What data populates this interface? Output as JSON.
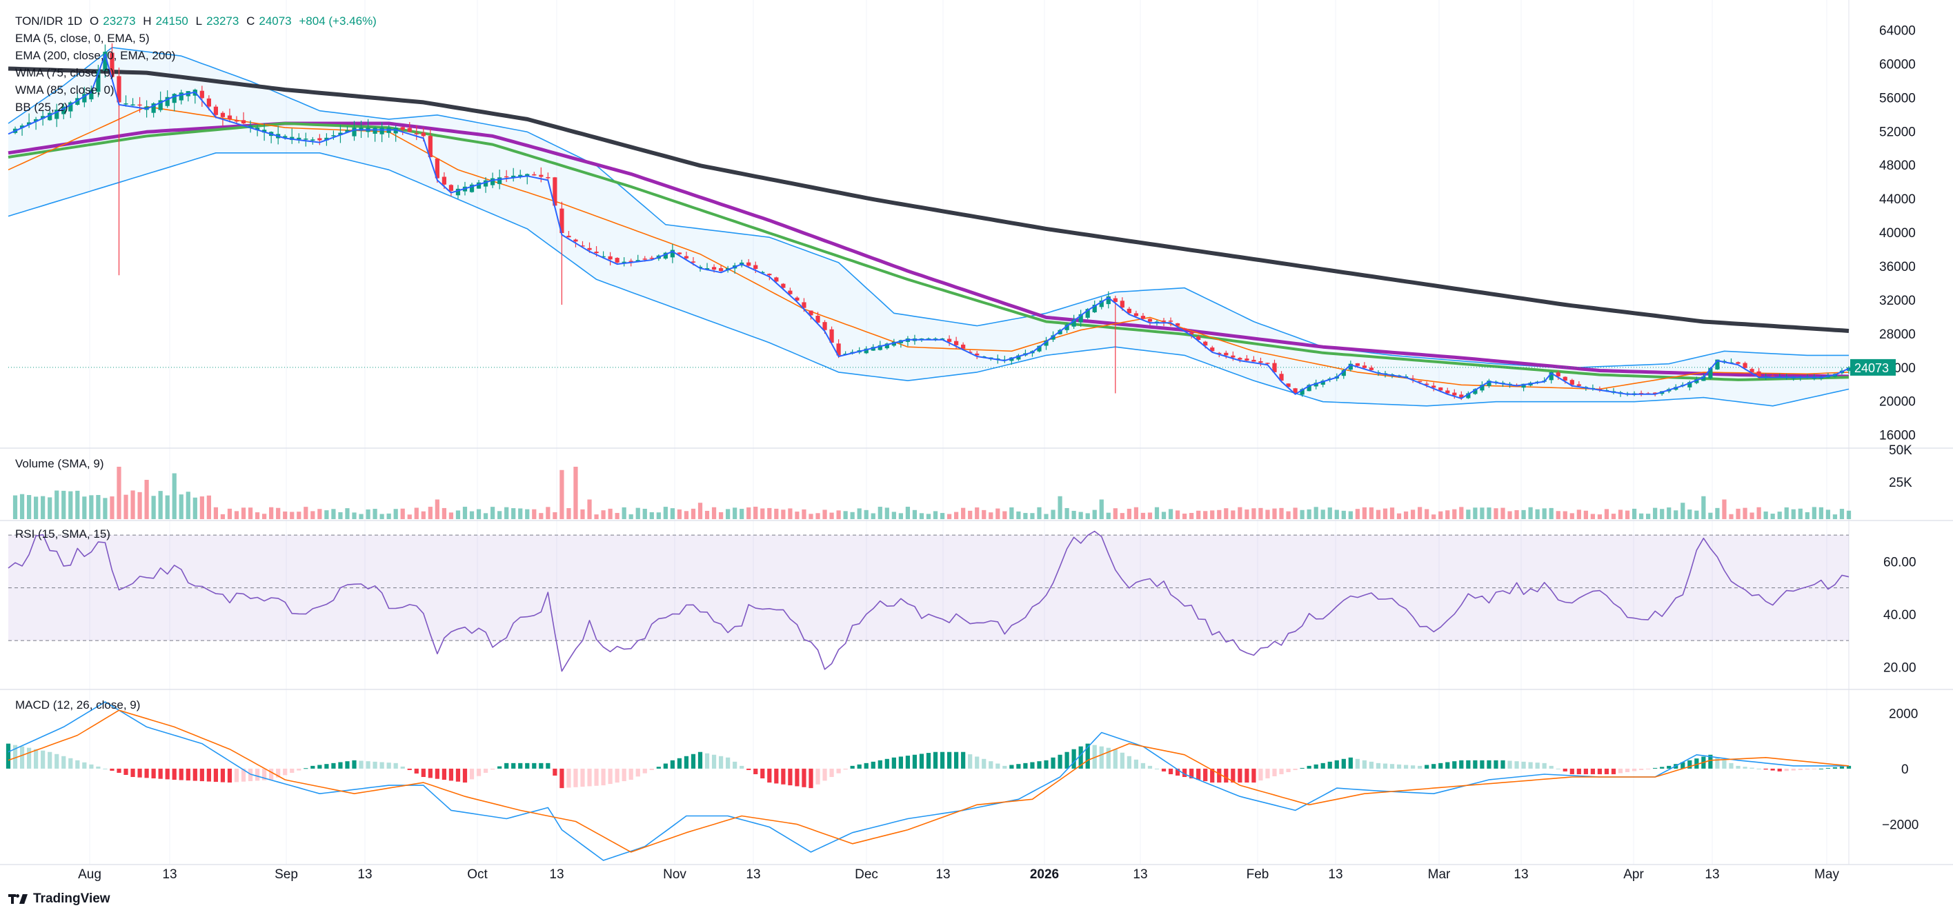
{
  "header": {
    "symbol": "TON/IDR",
    "interval": "1D",
    "open_label": "O",
    "open": "23273",
    "high_label": "H",
    "high": "24150",
    "low_label": "L",
    "low": "23273",
    "close_label": "C",
    "close": "24073",
    "change": "+804 (+3.46%)"
  },
  "indicators": [
    "EMA (5, close, 0, EMA, 5)",
    "EMA (200, close, 0, EMA, 200)",
    "WMA (75, close, 0)",
    "WMA (85, close, 0)",
    "BB (25, 2)"
  ],
  "panes": {
    "volume": "Volume (SMA, 9)",
    "rsi": "RSI (15, SMA, 15)",
    "macd": "MACD (12, 26, close, 9)"
  },
  "branding": "TradingView",
  "colors": {
    "up": "#089981",
    "down": "#f23645",
    "ema5": "#2962ff",
    "ema200": "#363a45",
    "wma75": "#4caf50",
    "wma85": "#9c27b0",
    "bb": "#2196f3",
    "orange": "#ff6d00",
    "rsi": "#7e57c2"
  },
  "chart_data": {
    "type": "candlestick",
    "price_axis": {
      "ticks": [
        64000,
        60000,
        56000,
        52000,
        48000,
        44000,
        40000,
        36000,
        32000,
        28000,
        24000,
        20000,
        16000
      ],
      "range": [
        14500,
        66000
      ],
      "last_price_label": "24073"
    },
    "volume_axis": {
      "ticks": [
        "50K",
        "25K"
      ]
    },
    "rsi_axis": {
      "ticks": [
        "60.00",
        "40.00",
        "20.00"
      ],
      "upper_band": 70,
      "mid": 50,
      "lower_band": 30,
      "range": [
        12,
        75
      ]
    },
    "macd_axis": {
      "ticks": [
        "2000",
        "0",
        "−2000"
      ],
      "range": [
        -3300,
        2800
      ]
    },
    "time_axis": {
      "labels": [
        "Aug",
        "13",
        "Sep",
        "13",
        "Oct",
        "13",
        "Nov",
        "13",
        "Dec",
        "13",
        "2026",
        "13",
        "Feb",
        "13",
        "Mar",
        "13",
        "Apr",
        "13",
        "May"
      ],
      "bold": [
        "2026"
      ]
    },
    "price_path": [
      [
        0,
        52000
      ],
      [
        8,
        55000
      ],
      [
        12,
        57000
      ],
      [
        14,
        61500
      ],
      [
        16,
        55500
      ],
      [
        20,
        55000
      ],
      [
        24,
        56500
      ],
      [
        27,
        57000
      ],
      [
        30,
        54000
      ],
      [
        34,
        53000
      ],
      [
        40,
        51500
      ],
      [
        45,
        51000
      ],
      [
        50,
        52500
      ],
      [
        56,
        52500
      ],
      [
        60,
        51500
      ],
      [
        62,
        46500
      ],
      [
        64,
        45000
      ],
      [
        70,
        46500
      ],
      [
        75,
        47000
      ],
      [
        78,
        46500
      ],
      [
        80,
        40000
      ],
      [
        84,
        38000
      ],
      [
        88,
        36500
      ],
      [
        93,
        37000
      ],
      [
        96,
        38000
      ],
      [
        100,
        36000
      ],
      [
        103,
        35500
      ],
      [
        106,
        36500
      ],
      [
        110,
        35000
      ],
      [
        114,
        32000
      ],
      [
        118,
        28500
      ],
      [
        120,
        25500
      ],
      [
        125,
        26500
      ],
      [
        130,
        27500
      ],
      [
        135,
        27500
      ],
      [
        140,
        25500
      ],
      [
        144,
        25000
      ],
      [
        148,
        26000
      ],
      [
        152,
        28500
      ],
      [
        156,
        31000
      ],
      [
        159,
        32500
      ],
      [
        162,
        30500
      ],
      [
        165,
        29500
      ],
      [
        168,
        29500
      ],
      [
        171,
        28000
      ],
      [
        174,
        26000
      ],
      [
        178,
        25000
      ],
      [
        182,
        24500
      ],
      [
        184,
        22500
      ],
      [
        186,
        21000
      ],
      [
        188,
        22000
      ],
      [
        192,
        23000
      ],
      [
        194,
        24500
      ],
      [
        198,
        23500
      ],
      [
        202,
        23000
      ],
      [
        205,
        22000
      ],
      [
        208,
        21000
      ],
      [
        210,
        20500
      ],
      [
        214,
        22500
      ],
      [
        218,
        22000
      ],
      [
        222,
        22500
      ],
      [
        223,
        23500
      ],
      [
        226,
        22000
      ],
      [
        230,
        21500
      ],
      [
        234,
        21000
      ],
      [
        238,
        21000
      ],
      [
        242,
        22000
      ],
      [
        245,
        23000
      ],
      [
        247,
        25000
      ],
      [
        250,
        24500
      ],
      [
        253,
        23000
      ],
      [
        256,
        23000
      ],
      [
        259,
        23000
      ],
      [
        262,
        23000
      ],
      [
        264,
        23300
      ],
      [
        266,
        24073
      ]
    ],
    "ema200_path": [
      [
        0,
        59500
      ],
      [
        20,
        59000
      ],
      [
        40,
        57000
      ],
      [
        60,
        55500
      ],
      [
        75,
        53500
      ],
      [
        100,
        48000
      ],
      [
        125,
        44000
      ],
      [
        150,
        40500
      ],
      [
        175,
        37500
      ],
      [
        200,
        34500
      ],
      [
        225,
        31500
      ],
      [
        245,
        29500
      ],
      [
        266,
        28400
      ]
    ],
    "wma75_path": [
      [
        0,
        49000
      ],
      [
        20,
        51500
      ],
      [
        40,
        53000
      ],
      [
        55,
        52500
      ],
      [
        70,
        50500
      ],
      [
        90,
        45500
      ],
      [
        110,
        40000
      ],
      [
        130,
        34500
      ],
      [
        150,
        29500
      ],
      [
        170,
        28000
      ],
      [
        190,
        25800
      ],
      [
        210,
        24500
      ],
      [
        230,
        23200
      ],
      [
        250,
        22600
      ],
      [
        266,
        22900
      ]
    ],
    "wma85_path": [
      [
        0,
        49500
      ],
      [
        20,
        52000
      ],
      [
        40,
        53000
      ],
      [
        55,
        53000
      ],
      [
        70,
        51500
      ],
      [
        90,
        47000
      ],
      [
        110,
        41500
      ],
      [
        130,
        35500
      ],
      [
        150,
        30000
      ],
      [
        170,
        28500
      ],
      [
        190,
        26500
      ],
      [
        210,
        25200
      ],
      [
        230,
        23700
      ],
      [
        250,
        23200
      ],
      [
        266,
        23000
      ]
    ],
    "ema5_offset": 0,
    "ema_orange_path": [
      [
        0,
        47500
      ],
      [
        20,
        55000
      ],
      [
        40,
        52500
      ],
      [
        55,
        52000
      ],
      [
        65,
        47500
      ],
      [
        80,
        43500
      ],
      [
        100,
        37500
      ],
      [
        115,
        31000
      ],
      [
        130,
        26500
      ],
      [
        145,
        26000
      ],
      [
        155,
        28500
      ],
      [
        165,
        30000
      ],
      [
        180,
        26000
      ],
      [
        195,
        23500
      ],
      [
        210,
        22000
      ],
      [
        230,
        21500
      ],
      [
        245,
        23500
      ],
      [
        260,
        23300
      ],
      [
        266,
        23500
      ]
    ],
    "bb_upper_path": [
      [
        0,
        53000
      ],
      [
        8,
        57500
      ],
      [
        15,
        62000
      ],
      [
        25,
        61000
      ],
      [
        35,
        58000
      ],
      [
        45,
        54500
      ],
      [
        55,
        53500
      ],
      [
        62,
        54000
      ],
      [
        75,
        52000
      ],
      [
        85,
        48000
      ],
      [
        95,
        41000
      ],
      [
        110,
        39500
      ],
      [
        120,
        36500
      ],
      [
        128,
        30500
      ],
      [
        140,
        29000
      ],
      [
        150,
        30500
      ],
      [
        160,
        33000
      ],
      [
        170,
        33500
      ],
      [
        180,
        29500
      ],
      [
        190,
        26500
      ],
      [
        200,
        25500
      ],
      [
        215,
        24500
      ],
      [
        225,
        24000
      ],
      [
        240,
        24500
      ],
      [
        248,
        26000
      ],
      [
        260,
        25500
      ],
      [
        266,
        25500
      ]
    ],
    "bb_lower_path": [
      [
        0,
        42000
      ],
      [
        10,
        44500
      ],
      [
        20,
        47000
      ],
      [
        30,
        49500
      ],
      [
        45,
        49500
      ],
      [
        55,
        47500
      ],
      [
        65,
        44000
      ],
      [
        75,
        40500
      ],
      [
        85,
        34500
      ],
      [
        100,
        30000
      ],
      [
        110,
        27000
      ],
      [
        120,
        23500
      ],
      [
        130,
        22500
      ],
      [
        140,
        23500
      ],
      [
        150,
        25500
      ],
      [
        160,
        26500
      ],
      [
        170,
        25500
      ],
      [
        180,
        22500
      ],
      [
        190,
        20000
      ],
      [
        205,
        19500
      ],
      [
        215,
        20000
      ],
      [
        225,
        20000
      ],
      [
        235,
        20000
      ],
      [
        245,
        20500
      ],
      [
        255,
        19500
      ],
      [
        266,
        21500
      ]
    ],
    "rsi_path": [
      [
        0,
        60
      ],
      [
        5,
        70
      ],
      [
        8,
        58
      ],
      [
        12,
        68
      ],
      [
        14,
        72
      ],
      [
        16,
        52
      ],
      [
        20,
        54
      ],
      [
        25,
        58
      ],
      [
        30,
        52
      ],
      [
        35,
        46
      ],
      [
        40,
        44
      ],
      [
        45,
        47
      ],
      [
        50,
        52
      ],
      [
        55,
        48
      ],
      [
        60,
        46
      ],
      [
        62,
        28
      ],
      [
        65,
        34
      ],
      [
        70,
        32
      ],
      [
        75,
        44
      ],
      [
        78,
        48
      ],
      [
        80,
        18
      ],
      [
        84,
        36
      ],
      [
        88,
        30
      ],
      [
        92,
        34
      ],
      [
        96,
        40
      ],
      [
        100,
        46
      ],
      [
        104,
        38
      ],
      [
        108,
        44
      ],
      [
        112,
        40
      ],
      [
        116,
        34
      ],
      [
        118,
        24
      ],
      [
        122,
        36
      ],
      [
        126,
        44
      ],
      [
        130,
        46
      ],
      [
        134,
        42
      ],
      [
        138,
        38
      ],
      [
        142,
        36
      ],
      [
        146,
        40
      ],
      [
        150,
        52
      ],
      [
        154,
        68
      ],
      [
        158,
        70
      ],
      [
        162,
        54
      ],
      [
        166,
        56
      ],
      [
        168,
        48
      ],
      [
        172,
        40
      ],
      [
        176,
        34
      ],
      [
        180,
        30
      ],
      [
        183,
        28
      ],
      [
        186,
        34
      ],
      [
        190,
        44
      ],
      [
        194,
        52
      ],
      [
        198,
        46
      ],
      [
        202,
        42
      ],
      [
        206,
        36
      ],
      [
        210,
        48
      ],
      [
        214,
        46
      ],
      [
        218,
        50
      ],
      [
        222,
        56
      ],
      [
        226,
        44
      ],
      [
        230,
        48
      ],
      [
        234,
        42
      ],
      [
        238,
        44
      ],
      [
        242,
        48
      ],
      [
        245,
        70
      ],
      [
        248,
        60
      ],
      [
        252,
        52
      ],
      [
        256,
        48
      ],
      [
        260,
        50
      ],
      [
        264,
        56
      ],
      [
        266,
        60
      ]
    ],
    "macd_path": [
      [
        0,
        600
      ],
      [
        8,
        1500
      ],
      [
        14,
        2400
      ],
      [
        20,
        1500
      ],
      [
        28,
        900
      ],
      [
        35,
        -200
      ],
      [
        45,
        -900
      ],
      [
        55,
        -600
      ],
      [
        60,
        -600
      ],
      [
        64,
        -1500
      ],
      [
        72,
        -1800
      ],
      [
        78,
        -1400
      ],
      [
        80,
        -2200
      ],
      [
        86,
        -3300
      ],
      [
        92,
        -2800
      ],
      [
        98,
        -1700
      ],
      [
        104,
        -1700
      ],
      [
        110,
        -2100
      ],
      [
        116,
        -3000
      ],
      [
        122,
        -2300
      ],
      [
        130,
        -1800
      ],
      [
        138,
        -1500
      ],
      [
        146,
        -1100
      ],
      [
        152,
        -300
      ],
      [
        158,
        1300
      ],
      [
        164,
        800
      ],
      [
        170,
        -200
      ],
      [
        178,
        -1000
      ],
      [
        186,
        -1500
      ],
      [
        192,
        -700
      ],
      [
        198,
        -800
      ],
      [
        206,
        -900
      ],
      [
        214,
        -400
      ],
      [
        222,
        -200
      ],
      [
        230,
        -300
      ],
      [
        238,
        -300
      ],
      [
        244,
        500
      ],
      [
        250,
        300
      ],
      [
        258,
        100
      ],
      [
        266,
        100
      ]
    ],
    "signal_path": [
      [
        0,
        300
      ],
      [
        10,
        1200
      ],
      [
        16,
        2100
      ],
      [
        24,
        1500
      ],
      [
        32,
        700
      ],
      [
        40,
        -400
      ],
      [
        50,
        -900
      ],
      [
        60,
        -500
      ],
      [
        66,
        -1000
      ],
      [
        74,
        -1500
      ],
      [
        82,
        -1900
      ],
      [
        90,
        -3000
      ],
      [
        98,
        -2300
      ],
      [
        106,
        -1700
      ],
      [
        114,
        -2000
      ],
      [
        122,
        -2700
      ],
      [
        130,
        -2200
      ],
      [
        140,
        -1300
      ],
      [
        148,
        -1100
      ],
      [
        156,
        300
      ],
      [
        162,
        900
      ],
      [
        170,
        500
      ],
      [
        178,
        -600
      ],
      [
        188,
        -1300
      ],
      [
        196,
        -900
      ],
      [
        206,
        -700
      ],
      [
        216,
        -500
      ],
      [
        226,
        -300
      ],
      [
        238,
        -300
      ],
      [
        246,
        300
      ],
      [
        254,
        400
      ],
      [
        266,
        100
      ]
    ],
    "hist_path": [
      [
        0,
        900
      ],
      [
        6,
        600
      ],
      [
        10,
        300
      ],
      [
        14,
        0
      ],
      [
        18,
        -300
      ],
      [
        24,
        -400
      ],
      [
        32,
        -500
      ],
      [
        38,
        -400
      ],
      [
        44,
        100
      ],
      [
        50,
        300
      ],
      [
        56,
        200
      ],
      [
        60,
        -300
      ],
      [
        66,
        -500
      ],
      [
        72,
        200
      ],
      [
        78,
        200
      ],
      [
        80,
        -700
      ],
      [
        86,
        -600
      ],
      [
        90,
        -400
      ],
      [
        96,
        300
      ],
      [
        100,
        600
      ],
      [
        104,
        400
      ],
      [
        110,
        -500
      ],
      [
        116,
        -700
      ],
      [
        122,
        100
      ],
      [
        128,
        400
      ],
      [
        134,
        600
      ],
      [
        138,
        600
      ],
      [
        144,
        100
      ],
      [
        150,
        300
      ],
      [
        156,
        900
      ],
      [
        160,
        700
      ],
      [
        164,
        200
      ],
      [
        168,
        -200
      ],
      [
        174,
        -500
      ],
      [
        180,
        -500
      ],
      [
        184,
        -200
      ],
      [
        188,
        100
      ],
      [
        194,
        400
      ],
      [
        198,
        200
      ],
      [
        204,
        100
      ],
      [
        210,
        300
      ],
      [
        216,
        300
      ],
      [
        222,
        200
      ],
      [
        226,
        -200
      ],
      [
        232,
        -200
      ],
      [
        240,
        100
      ],
      [
        246,
        500
      ],
      [
        250,
        100
      ],
      [
        256,
        -100
      ],
      [
        262,
        0
      ],
      [
        266,
        100
      ]
    ],
    "volume_spikes": [
      [
        16,
        0.8
      ],
      [
        20,
        0.6
      ],
      [
        24,
        0.7
      ],
      [
        62,
        0.3
      ],
      [
        80,
        0.75
      ],
      [
        82,
        0.8
      ],
      [
        84,
        0.3
      ],
      [
        100,
        0.25
      ],
      [
        152,
        0.35
      ],
      [
        158,
        0.3
      ],
      [
        242,
        0.25
      ],
      [
        245,
        0.35
      ],
      [
        248,
        0.3
      ]
    ]
  }
}
